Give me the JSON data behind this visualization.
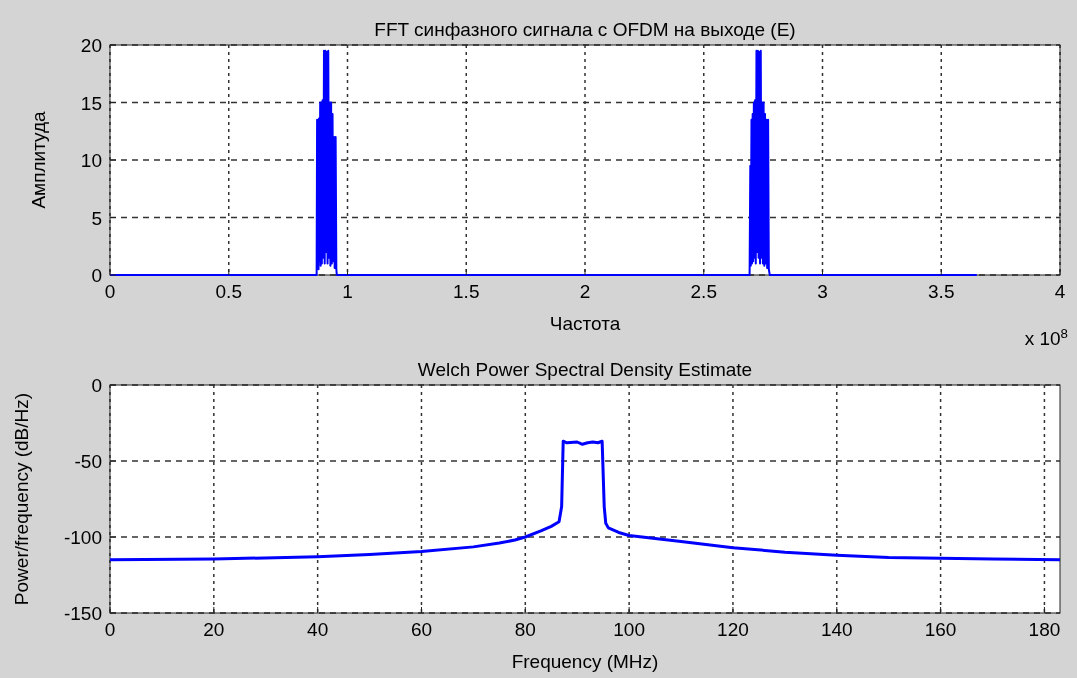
{
  "chart_data": [
    {
      "type": "line",
      "title": "FFT синфазного сигнала с OFDM на выходе (E)",
      "xlabel": "Частота",
      "ylabel": "Амплитуда",
      "xlim": [
        0,
        4
      ],
      "ylim": [
        0,
        20
      ],
      "xticks": [
        0,
        0.5,
        1,
        1.5,
        2,
        2.5,
        3,
        3.5,
        4
      ],
      "yticks": [
        0,
        5,
        10,
        15,
        20
      ],
      "grid": true,
      "annotations": [
        "x 10$^{8}$"
      ],
      "series": [
        {
          "color": "#0000ff",
          "x": [
            0,
            0.87,
            0.872,
            0.874,
            0.876,
            0.878,
            0.88,
            0.882,
            0.885,
            0.887,
            0.89,
            0.892,
            0.895,
            0.898,
            0.901,
            0.904,
            0.907,
            0.91,
            0.913,
            0.916,
            0.919,
            0.922,
            0.925,
            0.928,
            0.931,
            0.934,
            0.937,
            0.94,
            0.943,
            0.946,
            0.95,
            0.953,
            0.955,
            2.693,
            2.696,
            2.698,
            2.701,
            2.703,
            2.706,
            2.708,
            2.711,
            2.713,
            2.716,
            2.719,
            2.722,
            2.725,
            2.728,
            2.731,
            2.734,
            2.737,
            2.74,
            2.743,
            2.746,
            2.749,
            2.752,
            2.755,
            2.758,
            2.761,
            2.764,
            2.767,
            2.771,
            2.774,
            2.778,
            3.65
          ],
          "values": [
            0,
            0,
            13.5,
            1,
            13.5,
            0.5,
            13.6,
            1.2,
            15,
            0.8,
            15,
            1,
            15.2,
            1.5,
            19.5,
            1,
            19.5,
            2,
            19.4,
            1,
            19.5,
            1.5,
            15,
            0.8,
            15,
            1,
            14,
            1.2,
            12,
            0.6,
            12,
            0.5,
            0,
            0,
            9.5,
            0.8,
            13.5,
            1,
            14,
            1.2,
            15,
            1.5,
            15.2,
            1,
            19.5,
            2,
            19.5,
            1.5,
            19.4,
            1,
            19.5,
            1.5,
            15,
            1,
            15,
            0.8,
            14,
            1,
            13.5,
            0.6,
            13.5,
            0.5,
            0,
            0
          ]
        }
      ]
    },
    {
      "type": "line",
      "title": "Welch Power Spectral Density Estimate",
      "xlabel": "Frequency (MHz)",
      "ylabel": "Power/frequency (dB/Hz)",
      "xlim": [
        0,
        183
      ],
      "ylim": [
        -150,
        0
      ],
      "xticks": [
        0,
        20,
        40,
        60,
        80,
        100,
        120,
        140,
        160,
        180
      ],
      "yticks": [
        -150,
        -100,
        -50,
        0
      ],
      "grid": true,
      "series": [
        {
          "color": "#0000ff",
          "x": [
            0,
            20,
            40,
            50,
            60,
            70,
            75,
            78,
            80,
            83,
            85,
            86.5,
            87,
            87.3,
            88,
            90,
            91,
            92,
            93,
            94,
            94.8,
            95.2,
            95.5,
            96,
            98,
            100,
            105,
            110,
            120,
            130,
            140,
            150,
            160,
            170,
            183
          ],
          "values": [
            -115,
            -114.5,
            -113,
            -111.5,
            -109.5,
            -106.5,
            -104,
            -102,
            -100,
            -96,
            -93,
            -90,
            -80,
            -37,
            -38,
            -37.5,
            -39,
            -38,
            -37.5,
            -38,
            -37,
            -80,
            -91,
            -94,
            -97,
            -99,
            -101,
            -103,
            -107,
            -110,
            -112,
            -113.5,
            -114,
            -114.5,
            -115
          ]
        }
      ]
    }
  ]
}
